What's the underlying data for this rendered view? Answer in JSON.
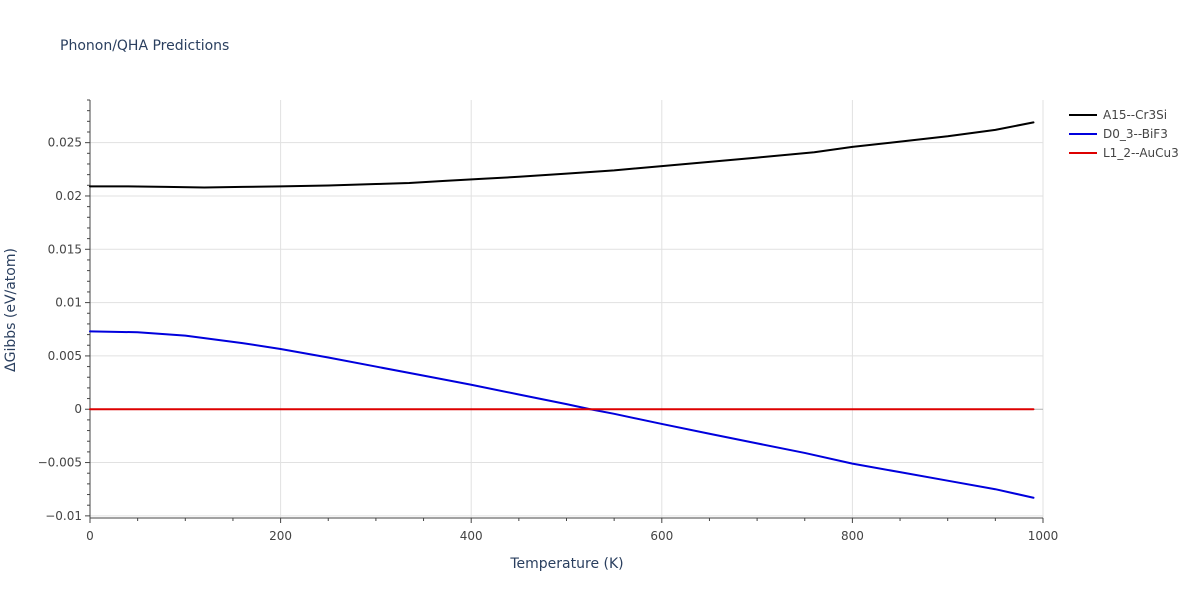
{
  "chart_data": {
    "type": "line",
    "title": "Phonon/QHA Predictions",
    "xlabel": "Temperature (K)",
    "ylabel": "ΔGibbs (eV/atom)",
    "xlim": [
      0,
      1000
    ],
    "ylim": [
      -0.0102,
      0.029
    ],
    "xticks": [
      0,
      200,
      400,
      600,
      800,
      1000
    ],
    "xtick_labels": [
      "0",
      "200",
      "400",
      "600",
      "800",
      "1000"
    ],
    "yticks": [
      -0.01,
      -0.005,
      0,
      0.005,
      0.01,
      0.015,
      0.02,
      0.025
    ],
    "ytick_labels": [
      "−0.01",
      "−0.005",
      "0",
      "0.005",
      "0.01",
      "0.015",
      "0.02",
      "0.025"
    ],
    "grid": true,
    "legend_position": "top-right",
    "series": [
      {
        "name": "A15--Cr3Si",
        "color": "#000000",
        "x": [
          0,
          40,
          80,
          120,
          160,
          200,
          250,
          300,
          335,
          370,
          410,
          450,
          500,
          550,
          600,
          650,
          700,
          760,
          800,
          850,
          900,
          950,
          990
        ],
        "y": [
          0.0209,
          0.0209,
          0.02085,
          0.0208,
          0.02085,
          0.0209,
          0.02098,
          0.02112,
          0.02122,
          0.0214,
          0.0216,
          0.0218,
          0.0221,
          0.0224,
          0.0228,
          0.0232,
          0.0236,
          0.0241,
          0.0246,
          0.0251,
          0.0256,
          0.0262,
          0.0269
        ]
      },
      {
        "name": "D0_3--BiF3",
        "color": "#0000dd",
        "x": [
          0,
          50,
          100,
          160,
          200,
          250,
          300,
          350,
          400,
          450,
          500,
          525,
          550,
          600,
          650,
          700,
          750,
          800,
          850,
          900,
          950,
          990
        ],
        "y": [
          0.0073,
          0.00722,
          0.0069,
          0.0062,
          0.00565,
          0.00485,
          0.004,
          0.00315,
          0.0023,
          0.00138,
          0.00048,
          0.0,
          -0.00043,
          -0.00138,
          -0.0023,
          -0.0032,
          -0.0041,
          -0.0051,
          -0.0059,
          -0.0067,
          -0.0075,
          -0.0083
        ]
      },
      {
        "name": "L1_2--AuCu3",
        "color": "#dd0000",
        "x": [
          0,
          990
        ],
        "y": [
          0,
          0
        ]
      }
    ]
  }
}
